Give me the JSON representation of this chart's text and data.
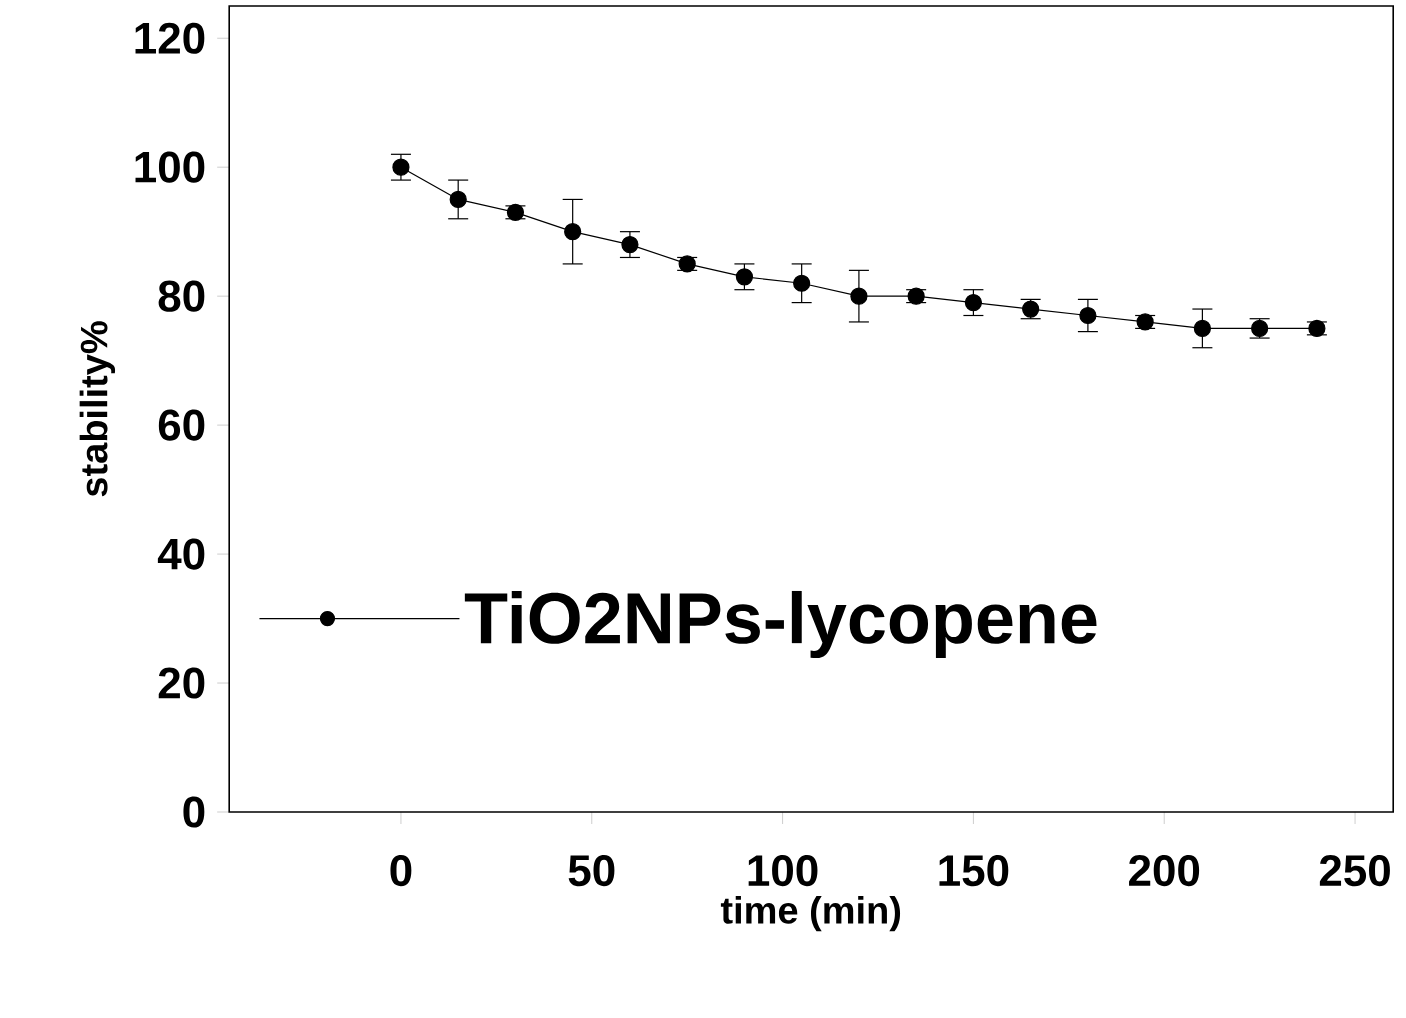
{
  "chart_data": {
    "type": "line",
    "xlabel": "time (min)",
    "ylabel": "stability%",
    "x": [
      0,
      15,
      30,
      45,
      60,
      75,
      90,
      105,
      120,
      135,
      150,
      165,
      180,
      195,
      210,
      225,
      240
    ],
    "series": [
      {
        "name": "TiO2NPs-lycopene",
        "color": "#000000",
        "values": [
          100,
          95,
          93,
          90,
          88,
          85,
          83,
          82,
          80,
          80,
          79,
          78,
          77,
          76,
          75,
          75,
          75
        ],
        "errors": [
          2,
          3,
          1,
          5,
          2,
          1,
          2,
          3,
          4,
          1,
          2,
          1.5,
          2.5,
          1,
          3,
          1.5,
          1
        ]
      }
    ],
    "xlim": [
      -45,
      260
    ],
    "ylim": [
      0,
      125
    ],
    "xticks": [
      0,
      50,
      100,
      150,
      200,
      250
    ],
    "yticks": [
      0,
      20,
      40,
      60,
      80,
      100,
      120
    ],
    "legend": "left",
    "marker": "circle",
    "line_style": "solid",
    "grid": false
  }
}
